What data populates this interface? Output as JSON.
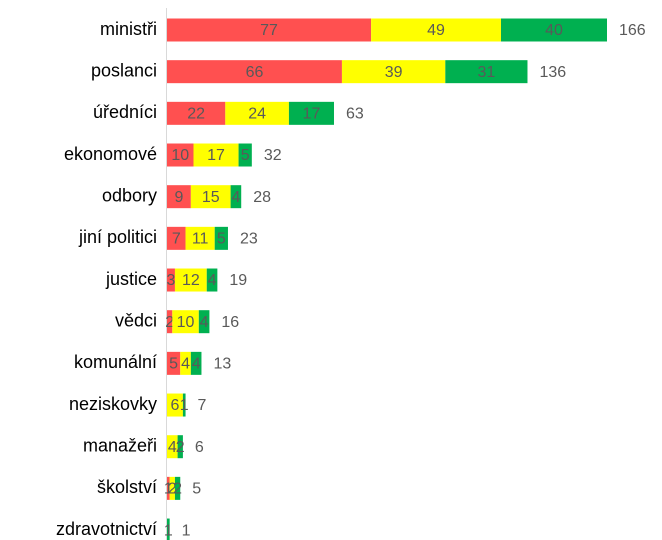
{
  "chart_data": {
    "type": "stacked_bar_horizontal",
    "categories": [
      "ministři",
      "poslanci",
      "úředníci",
      "ekonomové",
      "odbory",
      "jiní politici",
      "justice",
      "vědci",
      "komunální",
      "neziskovky",
      "manažeři",
      "školství",
      "zdravotnictví"
    ],
    "series": [
      {
        "color": "#ff5050",
        "values": [
          77,
          66,
          22,
          10,
          9,
          7,
          3,
          2,
          5,
          null,
          null,
          1,
          null
        ]
      },
      {
        "color": "#ffff00",
        "values": [
          49,
          39,
          24,
          17,
          15,
          11,
          12,
          10,
          4,
          6,
          4,
          2,
          null
        ]
      },
      {
        "color": "#00b050",
        "values": [
          40,
          31,
          17,
          5,
          4,
          5,
          4,
          4,
          4,
          1,
          2,
          2,
          1
        ]
      }
    ],
    "totals": [
      166,
      136,
      63,
      32,
      28,
      23,
      19,
      16,
      13,
      7,
      6,
      5,
      1
    ]
  }
}
